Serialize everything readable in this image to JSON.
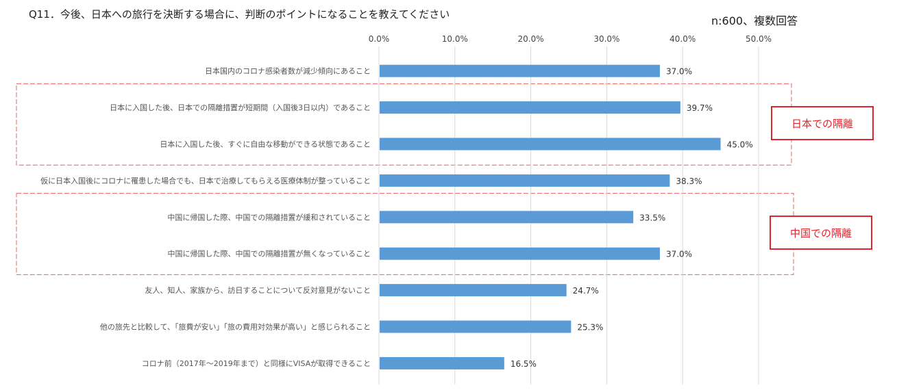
{
  "chart_data": {
    "type": "bar",
    "orientation": "horizontal",
    "title": "Q11．今後、日本への旅行を決断する場合に、判断のポイントになることを教えてください",
    "note": "n:600、複数回答",
    "xlim": [
      0,
      50
    ],
    "x_ticks": [
      "0.0%",
      "10.0%",
      "20.0%",
      "30.0%",
      "40.0%",
      "50.0%"
    ],
    "x_tick_values": [
      0,
      10,
      20,
      30,
      40,
      50
    ],
    "gridlines": true,
    "categories": [
      "日本国内のコロナ感染者数が減少傾向にあること",
      "日本に入国した後、日本での隔離措置が短期間（入国後3日以内）であること",
      "日本に入国した後、すぐに自由な移動ができる状態であること",
      "仮に日本入国後にコロナに罹患した場合でも、日本で治療してもらえる医療体制が整っていること",
      "中国に帰国した際、中国での隔離措置が緩和されていること",
      "中国に帰国した際、中国での隔離措置が無くなっていること",
      "友人、知人、家族から、訪日することについて反対意見がないこと",
      "他の旅先と比較して、「旅費が安い」「旅の費用対効果が高い」と感じられること",
      "コロナ前（2017年～2019年まで）と同様にVISAが取得できること"
    ],
    "values": [
      37.0,
      39.7,
      45.0,
      38.3,
      33.5,
      37.0,
      24.7,
      25.3,
      16.5
    ],
    "value_labels": [
      "37.0%",
      "39.7%",
      "45.0%",
      "38.3%",
      "33.5%",
      "37.0%",
      "24.7%",
      "25.3%",
      "16.5%"
    ],
    "bar_color": "#5b9bd5",
    "annotations": [
      {
        "label": "日本での隔離",
        "categories": [
          1,
          2
        ],
        "color": "#e0242b"
      },
      {
        "label": "中国での隔離",
        "categories": [
          4,
          5
        ],
        "color": "#e0242b"
      }
    ]
  }
}
